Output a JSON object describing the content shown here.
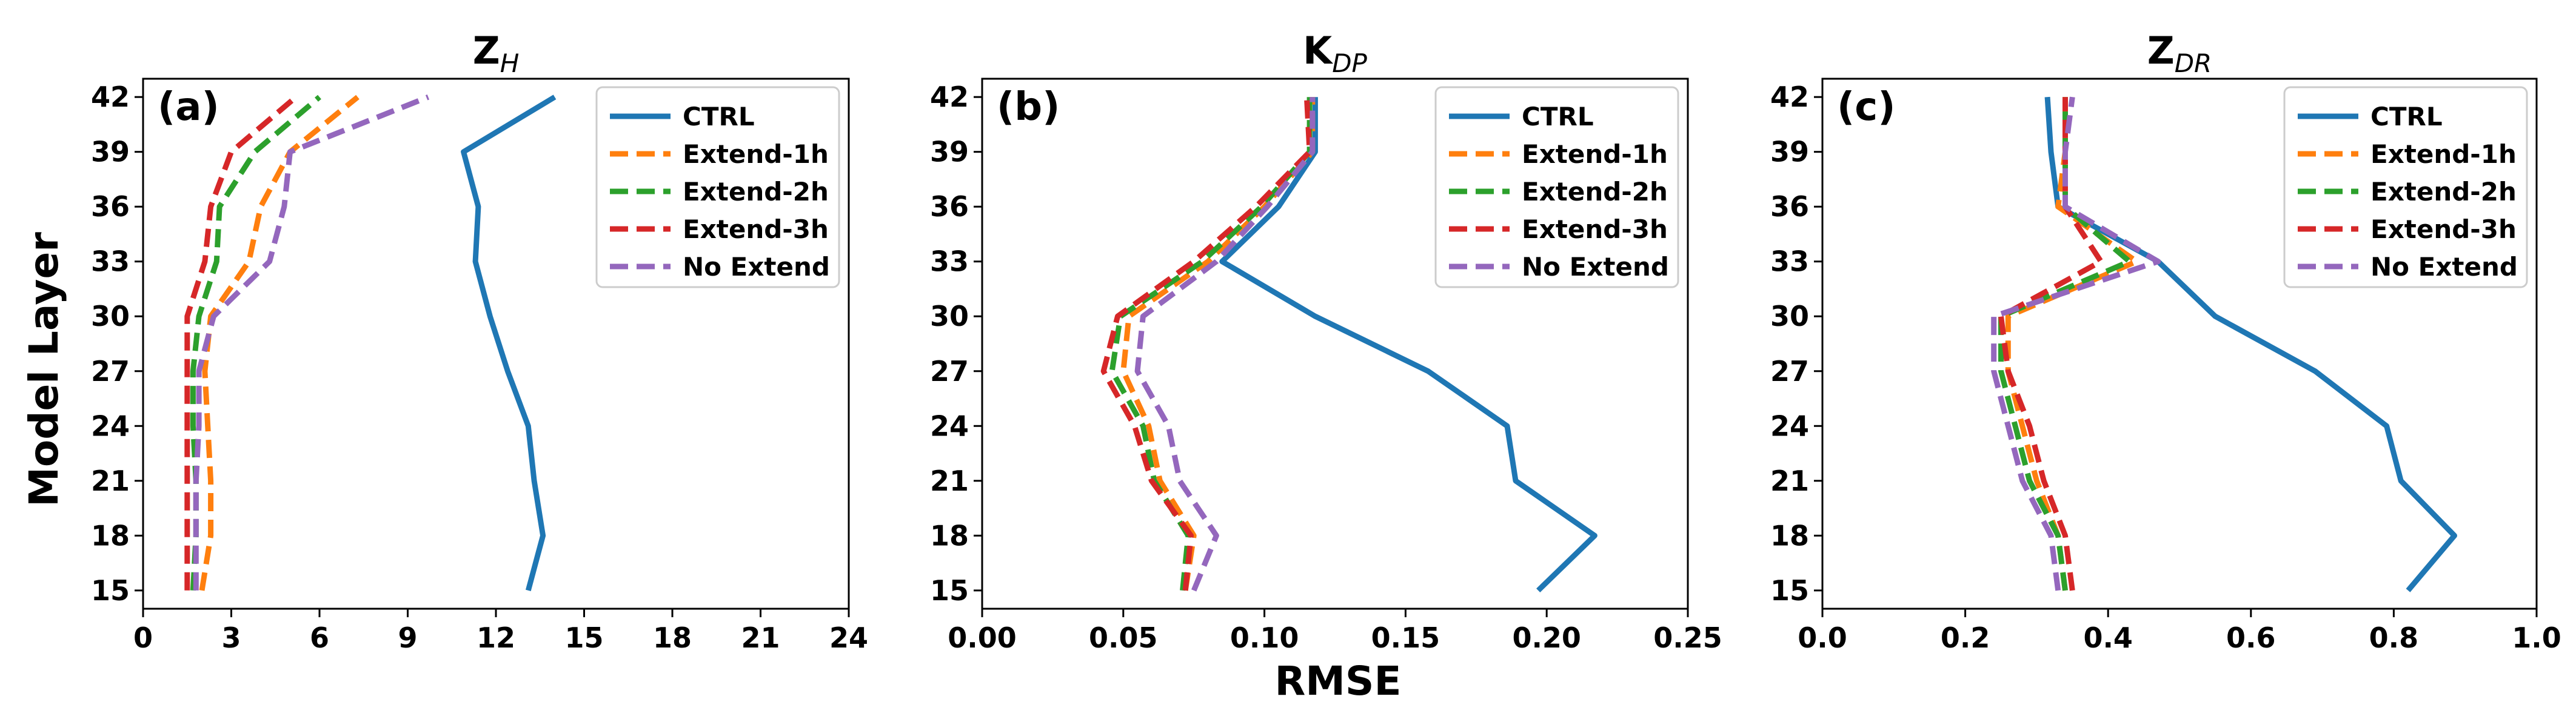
{
  "figure": {
    "ylabel": "Model  Layer",
    "xlabel": "RMSE"
  },
  "chart_data": [
    {
      "type": "line",
      "panel": "(a)",
      "title_main": "Z",
      "title_sub": "H",
      "xlim": [
        0,
        24
      ],
      "xticks": [
        0,
        3,
        6,
        9,
        12,
        15,
        18,
        21,
        24
      ],
      "ylim": [
        14,
        43
      ],
      "yticks": [
        15,
        18,
        21,
        24,
        27,
        30,
        33,
        36,
        39,
        42
      ],
      "legend_loc": "top-right",
      "series": [
        {
          "name": "CTRL",
          "color": "#1f77b4",
          "dash": "solid",
          "y": [
            15,
            18,
            21,
            24,
            27,
            30,
            33,
            36,
            39,
            42
          ],
          "x": [
            13.1,
            13.6,
            13.3,
            13.1,
            12.4,
            11.8,
            11.3,
            11.4,
            10.9,
            14.0
          ]
        },
        {
          "name": "Extend-1h",
          "color": "#ff7f0e",
          "dash": "dashed",
          "y": [
            15,
            18,
            21,
            24,
            27,
            30,
            33,
            36,
            39,
            42
          ],
          "x": [
            2.0,
            2.3,
            2.3,
            2.2,
            2.1,
            2.3,
            3.6,
            4.0,
            5.0,
            7.3
          ]
        },
        {
          "name": "Extend-2h",
          "color": "#2ca02c",
          "dash": "dashed",
          "y": [
            15,
            18,
            21,
            24,
            27,
            30,
            33,
            36,
            39,
            42
          ],
          "x": [
            1.7,
            1.8,
            1.8,
            1.7,
            1.7,
            1.9,
            2.5,
            2.6,
            3.8,
            6.0
          ]
        },
        {
          "name": "Extend-3h",
          "color": "#d62728",
          "dash": "dashed",
          "y": [
            15,
            18,
            21,
            24,
            27,
            30,
            33,
            36,
            39,
            42
          ],
          "x": [
            1.5,
            1.5,
            1.5,
            1.5,
            1.5,
            1.5,
            2.1,
            2.3,
            3.0,
            5.2
          ]
        },
        {
          "name": "No Extend",
          "color": "#9467bd",
          "dash": "dashed",
          "y": [
            15,
            18,
            21,
            24,
            27,
            30,
            33,
            36,
            39,
            42
          ],
          "x": [
            1.8,
            1.8,
            1.8,
            1.9,
            1.9,
            2.4,
            4.3,
            4.8,
            5.0,
            9.7
          ]
        }
      ]
    },
    {
      "type": "line",
      "panel": "(b)",
      "title_main": "K",
      "title_sub": "DP",
      "xlim": [
        0,
        0.25
      ],
      "xticks": [
        0.0,
        0.05,
        0.1,
        0.15,
        0.2,
        0.25
      ],
      "tick_decimals": 2,
      "ylim": [
        14,
        43
      ],
      "yticks": [
        15,
        18,
        21,
        24,
        27,
        30,
        33,
        36,
        39,
        42
      ],
      "legend_loc": "top-right",
      "series": [
        {
          "name": "CTRL",
          "color": "#1f77b4",
          "dash": "solid",
          "y": [
            15,
            18,
            21,
            24,
            27,
            30,
            33,
            36,
            39,
            42
          ],
          "x": [
            0.197,
            0.217,
            0.189,
            0.186,
            0.158,
            0.118,
            0.085,
            0.105,
            0.118,
            0.118
          ]
        },
        {
          "name": "Extend-1h",
          "color": "#ff7f0e",
          "dash": "dashed",
          "y": [
            15,
            18,
            21,
            24,
            27,
            30,
            33,
            36,
            39,
            42
          ],
          "x": [
            0.072,
            0.075,
            0.063,
            0.059,
            0.05,
            0.052,
            0.08,
            0.1,
            0.117,
            0.117
          ]
        },
        {
          "name": "Extend-2h",
          "color": "#2ca02c",
          "dash": "dashed",
          "y": [
            15,
            18,
            21,
            24,
            27,
            30,
            33,
            36,
            39,
            42
          ],
          "x": [
            0.071,
            0.073,
            0.061,
            0.057,
            0.046,
            0.049,
            0.078,
            0.099,
            0.116,
            0.116
          ]
        },
        {
          "name": "Extend-3h",
          "color": "#d62728",
          "dash": "dashed",
          "y": [
            15,
            18,
            21,
            24,
            27,
            30,
            33,
            36,
            39,
            42
          ],
          "x": [
            0.072,
            0.074,
            0.06,
            0.054,
            0.043,
            0.048,
            0.075,
            0.097,
            0.116,
            0.115
          ]
        },
        {
          "name": "No Extend",
          "color": "#9467bd",
          "dash": "dashed",
          "y": [
            15,
            18,
            21,
            24,
            27,
            30,
            33,
            36,
            39,
            42
          ],
          "x": [
            0.075,
            0.083,
            0.07,
            0.066,
            0.055,
            0.057,
            0.083,
            0.101,
            0.117,
            0.117
          ]
        }
      ]
    },
    {
      "type": "line",
      "panel": "(c)",
      "title_main": "Z",
      "title_sub": "DR",
      "xlim": [
        0,
        1.0
      ],
      "xticks": [
        0.0,
        0.2,
        0.4,
        0.6,
        0.8,
        1.0
      ],
      "tick_decimals": 1,
      "ylim": [
        14,
        43
      ],
      "yticks": [
        15,
        18,
        21,
        24,
        27,
        30,
        33,
        36,
        39,
        42
      ],
      "legend_loc": "top-right",
      "series": [
        {
          "name": "CTRL",
          "color": "#1f77b4",
          "dash": "solid",
          "y": [
            15,
            18,
            21,
            24,
            27,
            30,
            33,
            36,
            39,
            42
          ],
          "x": [
            0.82,
            0.885,
            0.81,
            0.79,
            0.69,
            0.55,
            0.47,
            0.33,
            0.32,
            0.315
          ]
        },
        {
          "name": "Extend-1h",
          "color": "#ff7f0e",
          "dash": "dashed",
          "y": [
            15,
            18,
            21,
            24,
            27,
            30,
            33,
            36,
            39,
            42
          ],
          "x": [
            0.34,
            0.33,
            0.3,
            0.28,
            0.26,
            0.26,
            0.44,
            0.33,
            0.34,
            0.34
          ]
        },
        {
          "name": "Extend-2h",
          "color": "#2ca02c",
          "dash": "dashed",
          "y": [
            15,
            18,
            21,
            24,
            27,
            30,
            33,
            36,
            39,
            42
          ],
          "x": [
            0.34,
            0.33,
            0.29,
            0.27,
            0.25,
            0.25,
            0.43,
            0.34,
            0.34,
            0.34
          ]
        },
        {
          "name": "Extend-3h",
          "color": "#d62728",
          "dash": "dashed",
          "y": [
            15,
            18,
            21,
            24,
            27,
            30,
            33,
            36,
            39,
            42
          ],
          "x": [
            0.35,
            0.34,
            0.31,
            0.29,
            0.26,
            0.25,
            0.39,
            0.34,
            0.34,
            0.34
          ]
        },
        {
          "name": "No Extend",
          "color": "#9467bd",
          "dash": "dashed",
          "y": [
            15,
            18,
            21,
            24,
            27,
            30,
            33,
            36,
            39,
            42
          ],
          "x": [
            0.33,
            0.32,
            0.28,
            0.26,
            0.24,
            0.24,
            0.47,
            0.34,
            0.34,
            0.35
          ]
        }
      ]
    }
  ]
}
